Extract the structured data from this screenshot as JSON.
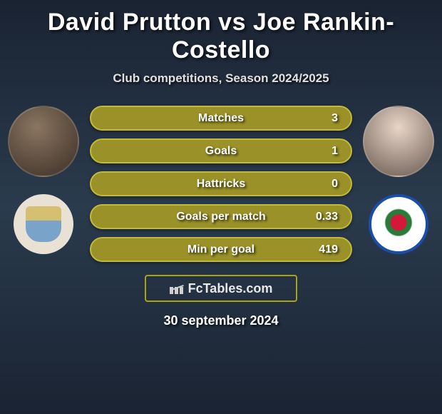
{
  "title": "David Prutton vs Joe Rankin-Costello",
  "subtitle": "Club competitions, Season 2024/2025",
  "date": "30 september 2024",
  "brand": "FcTables.com",
  "colors": {
    "bar_fill": "#9a9228",
    "bar_border": "#c2ba3a",
    "brand_border": "#aaa316",
    "bg_top": "#1a2332",
    "bg_mid": "#2a3b4d",
    "text": "#ffffff"
  },
  "players": {
    "left": {
      "name": "David Prutton",
      "club": "Coventry City"
    },
    "right": {
      "name": "Joe Rankin-Costello",
      "club": "Blackburn Rovers"
    }
  },
  "stats": [
    {
      "label": "Matches",
      "value": "3"
    },
    {
      "label": "Goals",
      "value": "1"
    },
    {
      "label": "Hattricks",
      "value": "0"
    },
    {
      "label": "Goals per match",
      "value": "0.33"
    },
    {
      "label": "Min per goal",
      "value": "419"
    }
  ]
}
